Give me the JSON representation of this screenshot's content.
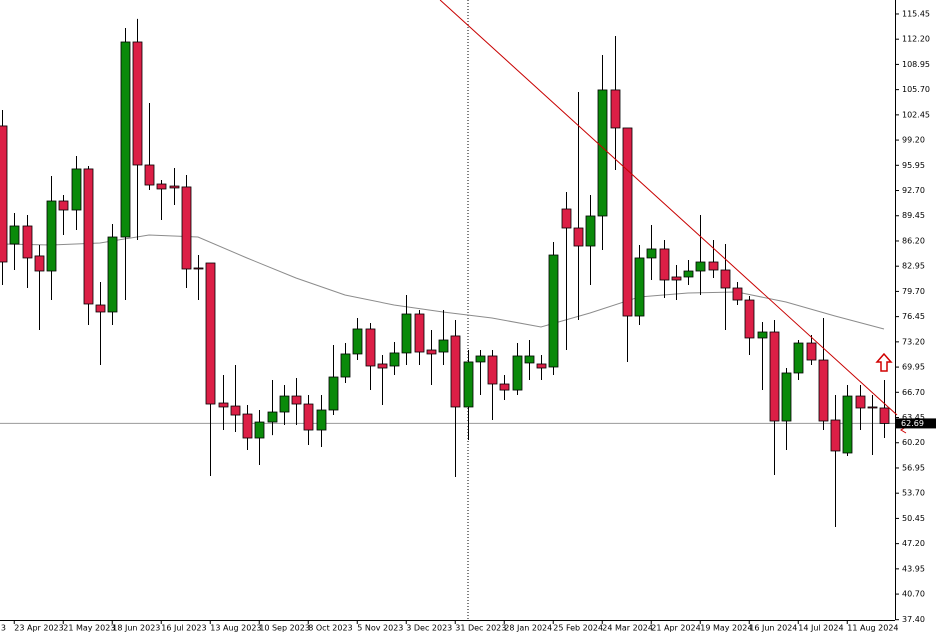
{
  "chart_data": {
    "type": "candlestick",
    "up_color": "#0a8a0a",
    "down_color": "#dc1f46",
    "x_cut_label": "3",
    "categories": [
      null,
      "23 Apr 2023",
      null,
      null,
      null,
      "21 May 2023",
      null,
      null,
      null,
      "18 Jun 2023",
      null,
      null,
      null,
      "16 Jul 2023",
      null,
      null,
      null,
      "13 Aug 2023",
      null,
      null,
      null,
      "10 Sep 2023",
      null,
      null,
      null,
      "8 Oct 2023",
      null,
      null,
      null,
      "5 Nov 2023",
      null,
      null,
      null,
      "3 Dec 2023",
      null,
      null,
      null,
      "31 Dec 2023",
      null,
      null,
      null,
      "28 Jan 2024",
      null,
      null,
      null,
      "25 Feb 2024",
      null,
      null,
      null,
      "24 Mar 2024",
      null,
      null,
      null,
      "21 Apr 2024",
      null,
      null,
      null,
      "19 May 2024",
      null,
      null,
      null,
      "16 Jun 2024",
      null,
      null,
      null,
      "14 Jul 2024",
      null,
      null,
      null,
      "11 Aug 2024",
      null,
      null,
      null
    ],
    "open": [
      101.02,
      85.81,
      88.13,
      84.27,
      82.33,
      91.35,
      90.19,
      95.48,
      77.95,
      77.05,
      86.71,
      111.84,
      95.99,
      93.54,
      93.28,
      93.16,
      82.72,
      83.36,
      65.32,
      64.93,
      63.9,
      60.81,
      62.87,
      64.16,
      66.22,
      65.19,
      61.84,
      64.42,
      68.67,
      71.64,
      74.86,
      70.35,
      70.09,
      71.77,
      76.79,
      72.15,
      71.89,
      73.96,
      64.81,
      70.61,
      71.38,
      67.77,
      66.99,
      70.48,
      70.35,
      69.96,
      90.32,
      87.87,
      85.55,
      89.42,
      105.66,
      100.76,
      76.53,
      84.01,
      85.17,
      81.56,
      81.56,
      82.33,
      83.49,
      82.46,
      80.14,
      78.59,
      73.7,
      74.47,
      63.0,
      69.19,
      73.05,
      70.86,
      63.13,
      58.88,
      66.22,
      64.81,
      64.68
    ],
    "high": [
      103.08,
      89.81,
      89.55,
      85.68,
      94.57,
      92.12,
      97.15,
      95.86,
      80.91,
      88.39,
      113.65,
      114.81,
      103.98,
      94.06,
      95.61,
      94.7,
      84.39,
      83.36,
      68.93,
      70.22,
      65.06,
      64.42,
      68.29,
      67.64,
      68.54,
      66.35,
      66.35,
      72.8,
      73.05,
      76.27,
      75.63,
      71.51,
      73.18,
      79.24,
      77.31,
      74.73,
      77.31,
      76.02,
      72.15,
      72.15,
      72.15,
      68.93,
      73.05,
      73.44,
      71.51,
      86.07,
      92.51,
      105.4,
      92.12,
      110.17,
      112.61,
      100.76,
      85.68,
      88.26,
      86.33,
      83.1,
      83.75,
      89.55,
      86.33,
      85.81,
      80.91,
      79.11,
      75.76,
      76.02,
      69.83,
      73.44,
      74.09,
      76.27,
      66.35,
      67.64,
      67.64,
      66.35,
      68.29
    ],
    "low": [
      80.53,
      82.46,
      80.14,
      74.73,
      78.59,
      86.97,
      87.61,
      75.37,
      70.22,
      75.37,
      78.59,
      86.33,
      92.77,
      88.9,
      90.84,
      80.14,
      78.59,
      55.91,
      61.84,
      61.58,
      59.27,
      57.33,
      61.19,
      62.48,
      62.48,
      59.91,
      59.65,
      63.77,
      67.9,
      70.86,
      67.0,
      65.06,
      68.93,
      70.22,
      70.22,
      67.64,
      70.22,
      55.78,
      60.55,
      66.35,
      63.13,
      65.71,
      66.35,
      68.29,
      68.29,
      68.93,
      72.15,
      76.02,
      80.53,
      85.04,
      95.35,
      70.61,
      75.37,
      81.17,
      78.85,
      78.59,
      80.53,
      79.24,
      81.43,
      74.73,
      77.95,
      71.51,
      67.0,
      56.04,
      59.27,
      68.29,
      70.22,
      61.84,
      49.34,
      58.49,
      61.84,
      58.62,
      60.81
    ],
    "close": [
      83.49,
      88.13,
      84.01,
      82.33,
      91.35,
      90.19,
      95.48,
      78.08,
      77.05,
      86.71,
      111.84,
      95.99,
      93.41,
      92.9,
      93.03,
      82.59,
      82.59,
      65.19,
      64.81,
      63.77,
      60.81,
      62.87,
      64.16,
      66.22,
      65.19,
      61.84,
      64.42,
      68.67,
      71.64,
      74.86,
      70.09,
      69.83,
      71.77,
      76.79,
      71.89,
      71.64,
      73.44,
      64.81,
      70.61,
      71.38,
      67.77,
      66.99,
      71.38,
      71.38,
      69.83,
      84.39,
      87.87,
      85.55,
      89.42,
      105.66,
      100.76,
      76.53,
      84.01,
      85.17,
      81.17,
      81.17,
      82.33,
      83.49,
      82.46,
      80.14,
      78.59,
      73.7,
      74.47,
      63.0,
      69.19,
      73.05,
      70.86,
      63.0,
      59.14,
      66.22,
      64.68,
      64.68,
      62.69
    ],
    "ma": {
      "color": "#8c8c8c",
      "x": [
        0,
        4,
        8,
        12,
        16,
        20,
        24,
        28,
        32,
        36,
        40,
        44,
        48,
        52,
        56,
        60,
        64,
        68,
        72
      ],
      "values": [
        85.81,
        85.68,
        85.94,
        86.97,
        86.71,
        84.01,
        81.43,
        79.24,
        77.95,
        77.05,
        76.27,
        75.11,
        76.92,
        78.98,
        79.5,
        79.63,
        78.34,
        76.53,
        74.86
      ]
    },
    "trendline": {
      "color": "#c80000",
      "x": [
        35.76,
        73.06
      ],
      "values": [
        117.25,
        63.77
      ]
    },
    "vline_x": 38,
    "current_price": 62.69,
    "ylim": [
      37.36,
      117.25
    ],
    "yticks": [
      115.45,
      {
        "value": 112.2,
        "label": "112.20"
      },
      108.95,
      {
        "value": 105.7,
        "label": "105.70"
      },
      102.45,
      {
        "value": 99.2,
        "label": "99.20"
      },
      95.95,
      {
        "value": 92.7,
        "label": "92.70"
      },
      89.45,
      {
        "value": 86.2,
        "label": "86.20"
      },
      82.95,
      {
        "value": 79.7,
        "label": "79.70"
      },
      76.45,
      {
        "value": 73.2,
        "label": "73.20"
      },
      69.95,
      {
        "value": 66.7,
        "label": "66.70"
      },
      63.45,
      {
        "value": 60.2,
        "label": "60.20"
      },
      56.95,
      {
        "value": 53.7,
        "label": "53.70"
      },
      50.45,
      {
        "value": 47.2,
        "label": "47.20"
      },
      43.95,
      {
        "value": 40.7,
        "label": "40.70"
      },
      {
        "value": 37.4,
        "label": "37.40"
      }
    ]
  }
}
